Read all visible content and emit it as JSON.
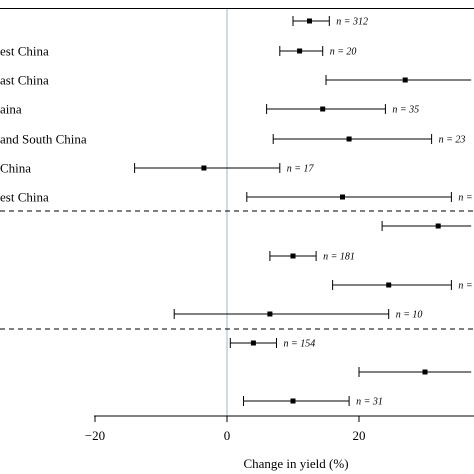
{
  "chart_data": {
    "type": "forest",
    "xlabel": "Change in yield  (%)",
    "xticks": [
      -20,
      0,
      20
    ],
    "xlim": [
      -20,
      37
    ],
    "reference_line": 0,
    "rows": [
      {
        "label": "",
        "mean": 12.5,
        "low": 10,
        "high": 15.5,
        "n_label": "n = 312",
        "group": 1
      },
      {
        "label": "est China",
        "mean": 11,
        "low": 8,
        "high": 14.5,
        "n_label": "n = 20",
        "group": 1
      },
      {
        "label": "ast China",
        "mean": 27,
        "low": 15,
        "high": 37,
        "n_label": "",
        "group": 1
      },
      {
        "label": "aina",
        "mean": 14.5,
        "low": 6,
        "high": 24,
        "n_label": "n = 35",
        "group": 1
      },
      {
        "label": " and South China",
        "mean": 18.5,
        "low": 7,
        "high": 31,
        "n_label": "n = 23",
        "group": 1
      },
      {
        "label": "China",
        "mean": -3.5,
        "low": -14,
        "high": 8,
        "n_label": "n = 17",
        "group": 1
      },
      {
        "label": "est China",
        "mean": 17.5,
        "low": 3,
        "high": 34,
        "n_label": "n =",
        "group": 1
      },
      {
        "label": "",
        "mean": 32,
        "low": 23.5,
        "high": 37,
        "n_label": "",
        "group": 2
      },
      {
        "label": "",
        "mean": 10,
        "low": 6.5,
        "high": 13.5,
        "n_label": "n = 181",
        "group": 2
      },
      {
        "label": "",
        "mean": 24.5,
        "low": 16,
        "high": 34,
        "n_label": "n =",
        "group": 2
      },
      {
        "label": "",
        "mean": 6.5,
        "low": -8,
        "high": 24.5,
        "n_label": "n = 10",
        "group": 2
      },
      {
        "label": "",
        "mean": 4,
        "low": 0.5,
        "high": 7.5,
        "n_label": "n = 154",
        "group": 3
      },
      {
        "label": "",
        "mean": 30,
        "low": 20,
        "high": 37,
        "n_label": "",
        "group": 3
      },
      {
        "label": "",
        "mean": 10,
        "low": 2.5,
        "high": 18.5,
        "n_label": "n = 31",
        "group": 3
      }
    ]
  }
}
